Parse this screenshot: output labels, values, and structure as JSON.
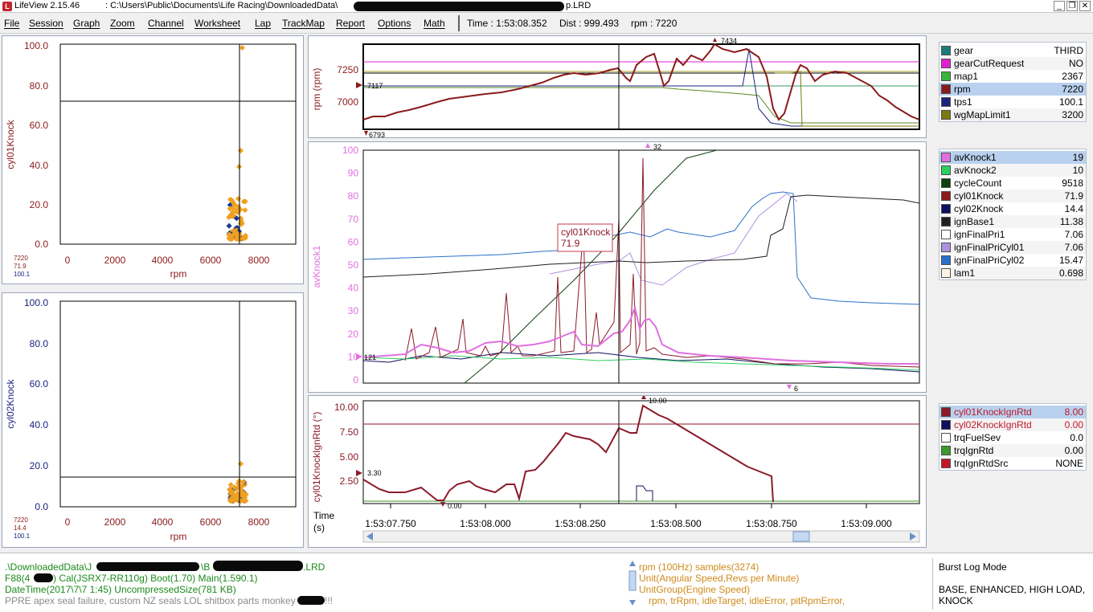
{
  "titlebar": {
    "app": "LifeView 2.15.46",
    "path_start": ":  C:\\Users\\Public\\Documents\\Life Racing\\DownloadedData\\",
    "path_end": "p.LRD",
    "min": "_",
    "max": "❐",
    "close": "✕"
  },
  "menu": [
    "File",
    "Session",
    "Graph",
    "Zoom",
    "Channel",
    "Worksheet",
    "Lap",
    "TrackMap",
    "Report",
    "Options",
    "Math"
  ],
  "status": {
    "time": "Time : 1:53:08.352",
    "dist": "Dist : 999.493",
    "rpm": "rpm : 7220"
  },
  "scatter1": {
    "ylabel": "cyl01Knock",
    "xlabel": "rpm",
    "yticks": [
      "100.0",
      "80.0",
      "60.0",
      "40.0",
      "20.0",
      "0.0"
    ],
    "xticks": [
      "0",
      "2000",
      "4000",
      "6000",
      "8000"
    ],
    "cursor_vals": [
      {
        "text": "7220",
        "color": "#8b1a1a"
      },
      {
        "text": "71.9",
        "color": "#8b1a1a"
      },
      {
        "text": "100.1",
        "color": "#1a237e"
      }
    ]
  },
  "scatter2": {
    "ylabel": "cyl02Knock",
    "xlabel": "rpm",
    "yticks": [
      "100.0",
      "80.0",
      "60.0",
      "40.0",
      "20.0",
      "0.0"
    ],
    "xticks": [
      "0",
      "2000",
      "4000",
      "6000",
      "8000"
    ],
    "cursor_vals": [
      {
        "text": "7220",
        "color": "#8b1a1a"
      },
      {
        "text": "14.4",
        "color": "#8b1a1a"
      },
      {
        "text": "100.1",
        "color": "#1a237e"
      }
    ]
  },
  "rpm_chart": {
    "ylabel": "rpm (rpm)",
    "yticks": [
      "7250",
      "7000"
    ],
    "max_label": "7434",
    "min_label": "6793",
    "marker_label": "7117"
  },
  "knock_chart": {
    "ylabel": "avKnock1",
    "yticks": [
      "100",
      "90",
      "80",
      "70",
      "60",
      "50",
      "40",
      "30",
      "20",
      "10",
      "0"
    ],
    "max_label": "32",
    "min_label": "6",
    "marker_label": "121",
    "tooltip_name": "cyl01Knock",
    "tooltip_value": "71.9"
  },
  "ign_chart": {
    "ylabel": "cyl01KnockIgnRtd (°)",
    "yticks": [
      "10.00",
      "7.50",
      "5.00",
      "2.50"
    ],
    "max_label": "10.00",
    "min_label": "0.00",
    "marker_label": "3.30"
  },
  "time_axis": {
    "label1": "Time",
    "label2": "(s)",
    "ticks": [
      "1:53:07.750",
      "1:53:08.000",
      "1:53:08.250",
      "1:53:08.500",
      "1:53:08.750",
      "1:53:09.000"
    ]
  },
  "legend1": [
    {
      "name": "gear",
      "value": "THIRD",
      "color": "#1b7b7b"
    },
    {
      "name": "gearCutRequest",
      "value": "NO",
      "color": "#e020d0"
    },
    {
      "name": "map1",
      "value": "2367",
      "color": "#3cb43c"
    },
    {
      "name": "rpm",
      "value": "7220",
      "color": "#8b1a1a",
      "selected": true
    },
    {
      "name": "tps1",
      "value": "100.1",
      "color": "#1a237e"
    },
    {
      "name": "wgMapLimit1",
      "value": "3200",
      "color": "#7a7a10"
    }
  ],
  "legend2": [
    {
      "name": "avKnock1",
      "value": "19",
      "color": "#e070e0",
      "selected": true
    },
    {
      "name": "avKnock2",
      "value": "10",
      "color": "#2cd060"
    },
    {
      "name": "cycleCount",
      "value": "9518",
      "color": "#104010"
    },
    {
      "name": "cyl01Knock",
      "value": "71.9",
      "color": "#8b1a1a"
    },
    {
      "name": "cyl02Knock",
      "value": "14.4",
      "color": "#101060"
    },
    {
      "name": "ignBase1",
      "value": "11.38",
      "color": "#202020"
    },
    {
      "name": "ignFinalPri1",
      "value": "7.06",
      "color": "#ffffff"
    },
    {
      "name": "ignFinalPriCyl01",
      "value": "7.06",
      "color": "#b090e0"
    },
    {
      "name": "ignFinalPriCyl02",
      "value": "15.47",
      "color": "#2a70c8"
    },
    {
      "name": "lam1",
      "value": "0.698",
      "color": "#fff4e4"
    }
  ],
  "legend3": [
    {
      "name": "cyl01KnockIgnRtd",
      "value": "8.00",
      "color": "#8b1a2a",
      "selected": true
    },
    {
      "name": "cyl02KnockIgnRtd",
      "value": "0.00",
      "color": "#101060"
    },
    {
      "name": "trqFuelSev",
      "value": "0.0",
      "color": "#ffffff"
    },
    {
      "name": "trqIgnRtd",
      "value": "0.00",
      "color": "#3a9a2a"
    },
    {
      "name": "trqIgnRtdSrc",
      "value": "NONE",
      "color": "#c0182a"
    }
  ],
  "bottom": {
    "path_start": ".\\DownloadedData\\J",
    "path_mid": "\\B",
    "path_end": ".LRD",
    "ecu_start": "F88(4",
    "ecu_rest": ") Cal(JSRX7-RR110g) Boot(1.70) Main(1.590.1)",
    "datetime": "DateTime(2017\\7\\7 1:45) UncompressedSize(781 KB)",
    "comment": "PPRE apex seal failure, custom NZ seals LOL shitbox parts monkey ",
    "comment_end": "!!!",
    "channel_info": [
      "rpm (100Hz) samples(3274)",
      "Unit(Angular Speed,Revs per Minute)",
      "UnitGroup(Engine Speed)",
      "rpm, trRpm, idleTarget, idleError, pitRpmError,"
    ],
    "mode_title": "Burst Log Mode",
    "mode_line1": "BASE, ENHANCED, HIGH LOAD,",
    "mode_line2": "KNOCK"
  }
}
